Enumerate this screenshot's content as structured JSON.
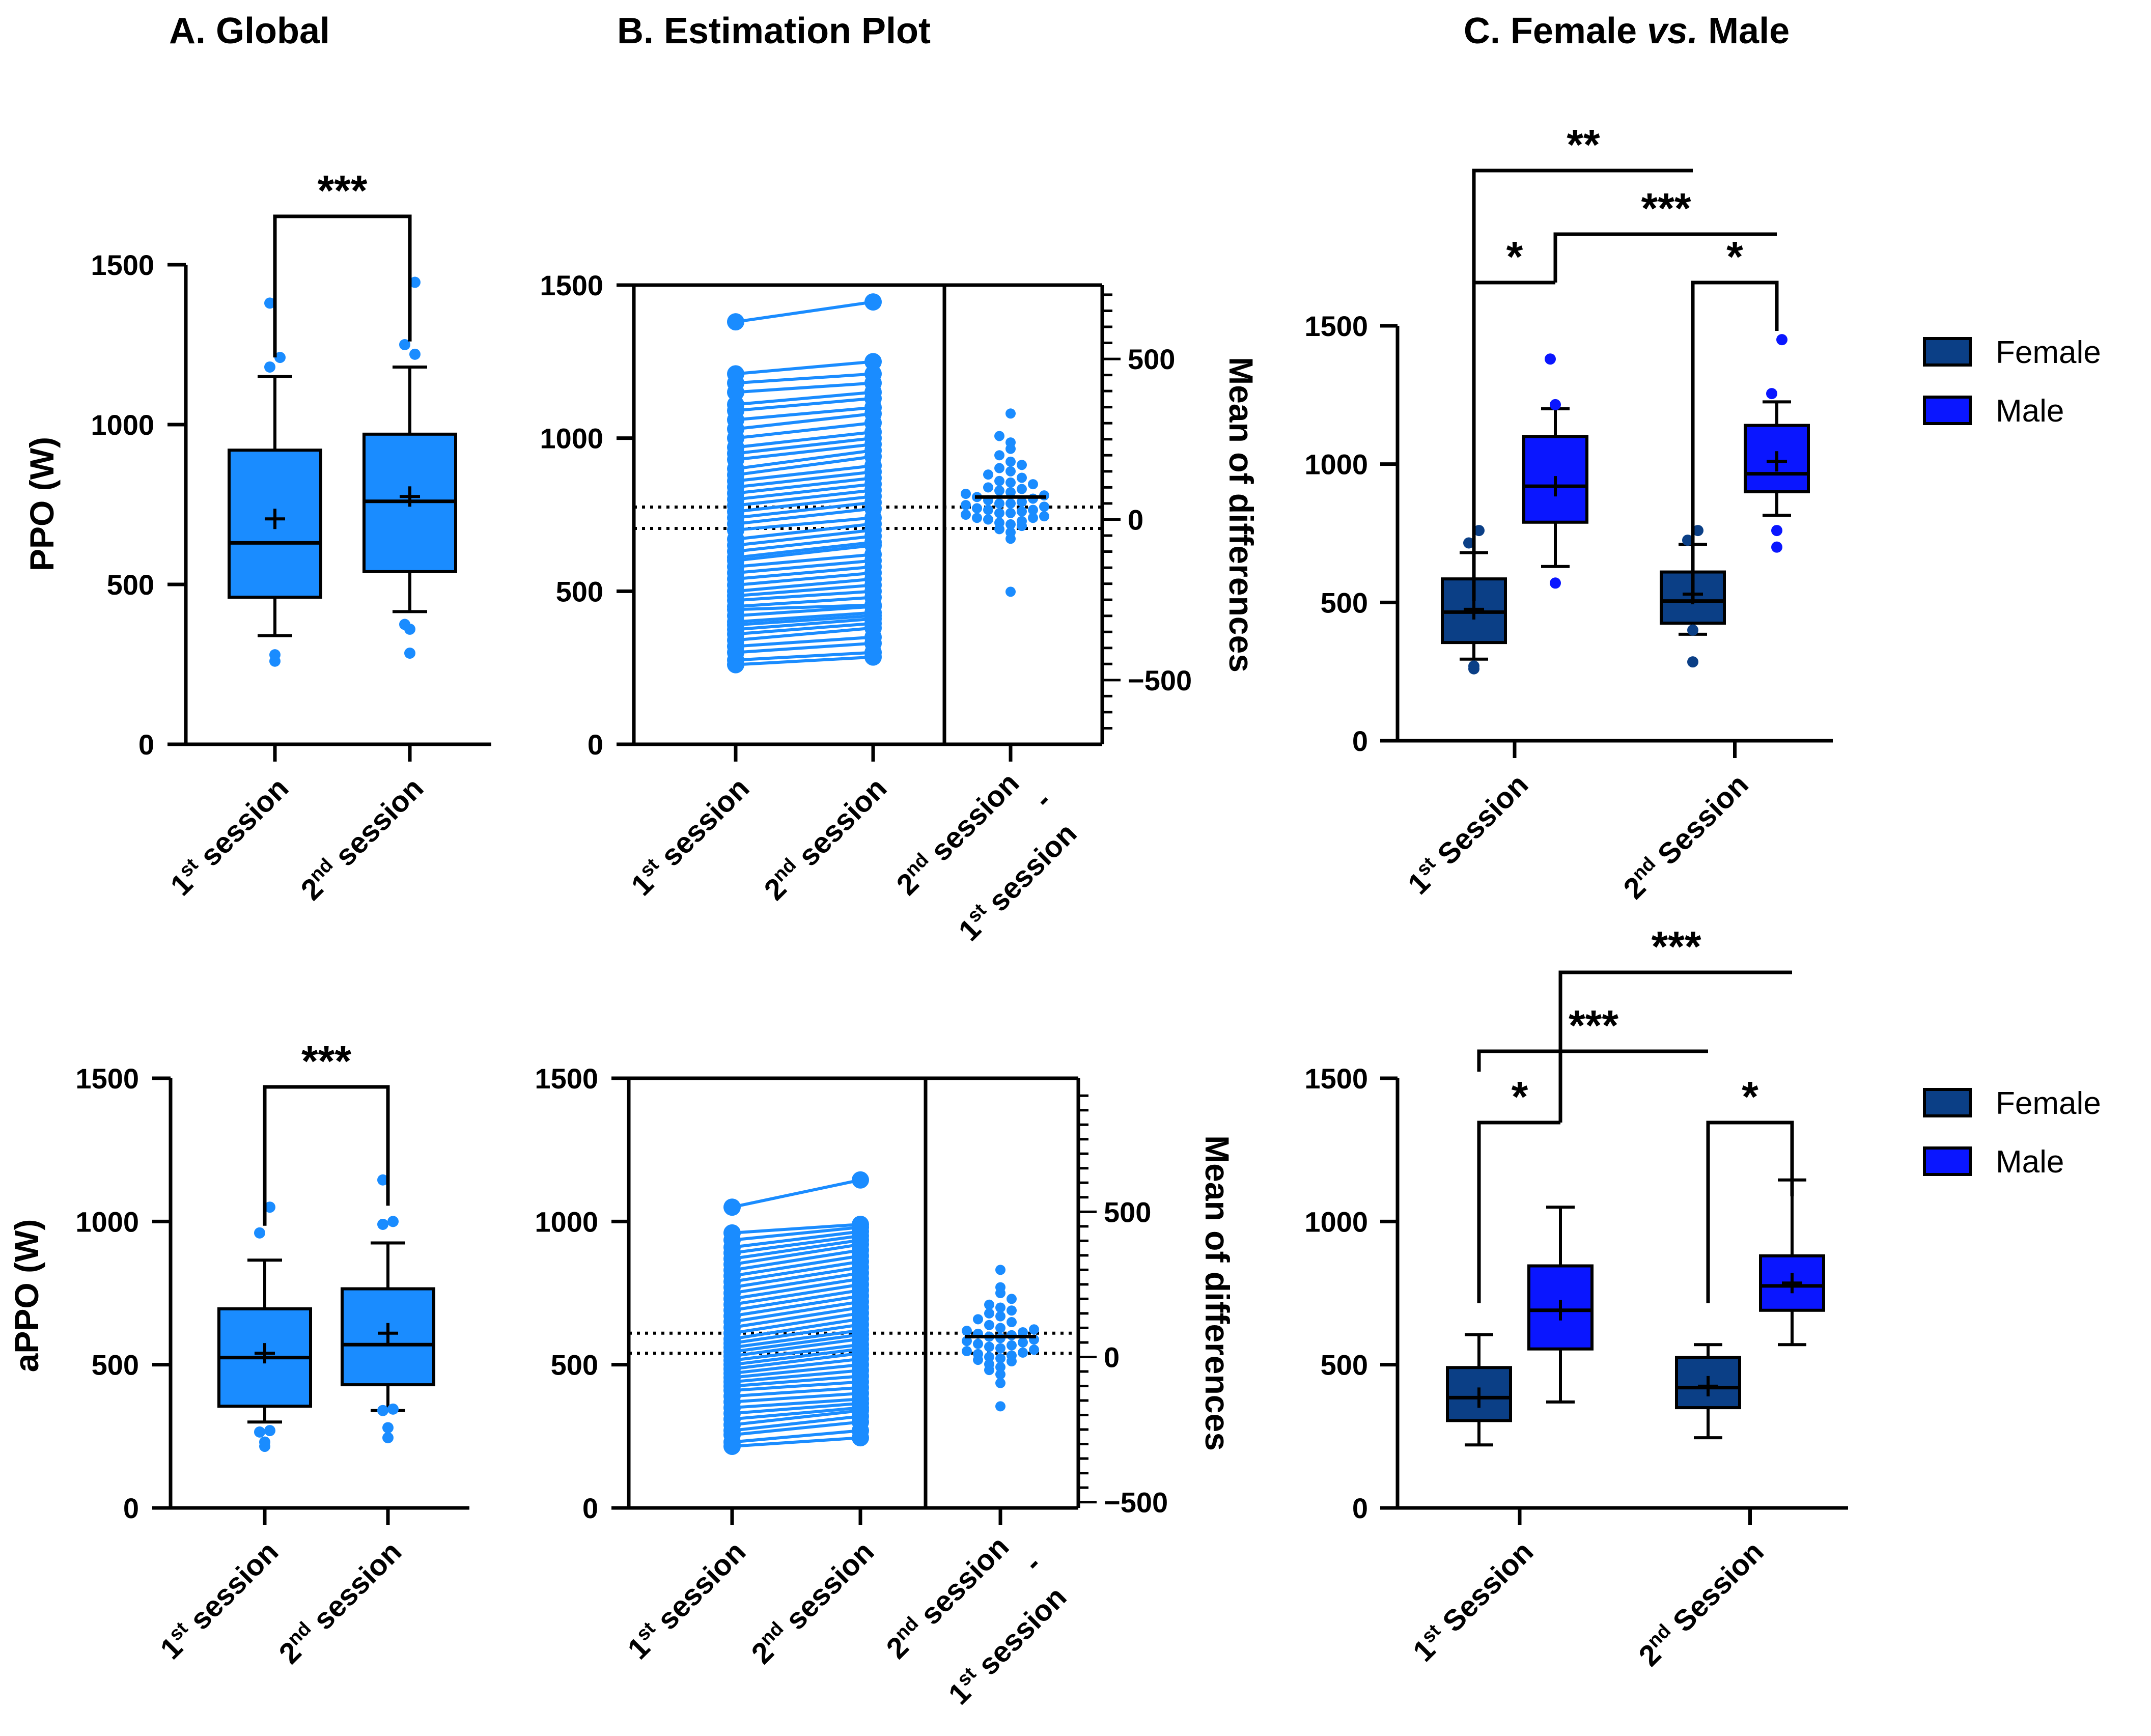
{
  "colors": {
    "global": "#1a8cff",
    "female": "#0b3f86",
    "male": "#0a16ff",
    "ink": "#000000"
  },
  "panels": {
    "A": {
      "title": "A. Global"
    },
    "B": {
      "title": "B. Estimation Plot"
    },
    "C": {
      "title_prefix": "C. Female ",
      "title_vs": "vs.",
      "title_suffix": " Male"
    }
  },
  "labels": {
    "s1_main": "1",
    "s1_sup": "st",
    "s1_word": " session",
    "s2_main": "2",
    "s2_sup": "nd",
    "s2_word": " session",
    "S1_word": " Session",
    "S2_word": " Session",
    "diff_dash": "-",
    "mean_of_differences": "Mean of differences"
  },
  "legend": {
    "female": "Female",
    "male": "Male"
  },
  "chart_data": [
    {
      "id": "A-top",
      "type": "box",
      "ylabel": "PPO (W)",
      "ylim": [
        0,
        1500
      ],
      "yticks": [
        0,
        500,
        1000,
        1500
      ],
      "categories": [
        "1st session",
        "2nd session"
      ],
      "boxes": [
        {
          "whisker_low": 340,
          "q1": 460,
          "median": 630,
          "q3": 920,
          "whisker_high": 1150,
          "mean": 705,
          "outliers": [
            260,
            280,
            1180,
            1210,
            1380
          ]
        },
        {
          "whisker_low": 415,
          "q1": 540,
          "median": 760,
          "q3": 970,
          "whisker_high": 1180,
          "mean": 775,
          "outliers": [
            285,
            360,
            375,
            1220,
            1250,
            1445
          ]
        }
      ],
      "significance": "***"
    },
    {
      "id": "A-bottom",
      "type": "box",
      "ylabel": "aPPO (W)",
      "ylim": [
        0,
        1500
      ],
      "yticks": [
        0,
        500,
        1000,
        1500
      ],
      "categories": [
        "1st session",
        "2nd session"
      ],
      "boxes": [
        {
          "whisker_low": 300,
          "q1": 355,
          "median": 525,
          "q3": 695,
          "whisker_high": 865,
          "mean": 540,
          "outliers": [
            215,
            230,
            265,
            270,
            960,
            1050
          ]
        },
        {
          "whisker_low": 340,
          "q1": 430,
          "median": 570,
          "q3": 765,
          "whisker_high": 925,
          "mean": 610,
          "outliers": [
            245,
            280,
            340,
            345,
            990,
            1000,
            1145
          ]
        }
      ],
      "significance": "***"
    },
    {
      "id": "B-top",
      "type": "estimation",
      "ylim": [
        0,
        1500
      ],
      "yticks": [
        0,
        500,
        1000,
        1500
      ],
      "diff_ylim": [
        -700,
        730
      ],
      "diff_yticks": [
        -500,
        0,
        500
      ],
      "categories": [
        "1st session",
        "2nd session",
        "2nd session - 1st session"
      ],
      "ylabel_right": "Mean of differences",
      "mean_first": 705,
      "mean_second": 775,
      "pairs": [
        [
          260,
          285
        ],
        [
          275,
          300
        ],
        [
          300,
          330
        ],
        [
          320,
          350
        ],
        [
          340,
          380
        ],
        [
          360,
          395
        ],
        [
          375,
          410
        ],
        [
          390,
          420
        ],
        [
          400,
          430
        ],
        [
          420,
          450
        ],
        [
          440,
          455
        ],
        [
          450,
          480
        ],
        [
          470,
          500
        ],
        [
          485,
          520
        ],
        [
          500,
          540
        ],
        [
          520,
          560
        ],
        [
          540,
          580
        ],
        [
          560,
          600
        ],
        [
          580,
          620
        ],
        [
          600,
          650
        ],
        [
          610,
          660
        ],
        [
          630,
          680
        ],
        [
          650,
          700
        ],
        [
          670,
          720
        ],
        [
          700,
          740
        ],
        [
          720,
          770
        ],
        [
          740,
          790
        ],
        [
          760,
          810
        ],
        [
          780,
          830
        ],
        [
          800,
          850
        ],
        [
          820,
          870
        ],
        [
          840,
          890
        ],
        [
          860,
          910
        ],
        [
          880,
          940
        ],
        [
          900,
          960
        ],
        [
          930,
          980
        ],
        [
          950,
          1000
        ],
        [
          970,
          1020
        ],
        [
          1000,
          1050
        ],
        [
          1030,
          1080
        ],
        [
          1060,
          1100
        ],
        [
          1090,
          1130
        ],
        [
          1110,
          1150
        ],
        [
          1150,
          1180
        ],
        [
          1180,
          1210
        ],
        [
          1210,
          1250
        ],
        [
          1380,
          1445
        ]
      ],
      "differences": [
        -225,
        -60,
        -40,
        -30,
        -20,
        -15,
        -10,
        -5,
        0,
        5,
        5,
        10,
        15,
        20,
        20,
        25,
        30,
        30,
        35,
        40,
        45,
        50,
        50,
        55,
        60,
        65,
        70,
        75,
        80,
        85,
        90,
        95,
        100,
        110,
        115,
        120,
        130,
        140,
        150,
        160,
        170,
        180,
        200,
        220,
        240,
        260,
        330
      ]
    },
    {
      "id": "B-bottom",
      "type": "estimation",
      "ylim": [
        0,
        1500
      ],
      "yticks": [
        0,
        500,
        1000,
        1500
      ],
      "diff_ylim": [
        -520,
        960
      ],
      "diff_yticks": [
        -500,
        0,
        500
      ],
      "categories": [
        "1st session",
        "2nd session",
        "2nd session - 1st session"
      ],
      "ylabel_right": "Mean of differences",
      "mean_first": 540,
      "mean_second": 610,
      "pairs": [
        [
          215,
          245
        ],
        [
          230,
          270
        ],
        [
          255,
          300
        ],
        [
          270,
          320
        ],
        [
          290,
          340
        ],
        [
          310,
          350
        ],
        [
          330,
          365
        ],
        [
          350,
          380
        ],
        [
          370,
          400
        ],
        [
          390,
          420
        ],
        [
          410,
          440
        ],
        [
          425,
          460
        ],
        [
          440,
          480
        ],
        [
          455,
          500
        ],
        [
          470,
          520
        ],
        [
          485,
          540
        ],
        [
          500,
          555
        ],
        [
          515,
          570
        ],
        [
          530,
          590
        ],
        [
          545,
          605
        ],
        [
          560,
          620
        ],
        [
          575,
          640
        ],
        [
          590,
          660
        ],
        [
          610,
          680
        ],
        [
          630,
          700
        ],
        [
          650,
          720
        ],
        [
          670,
          740
        ],
        [
          690,
          760
        ],
        [
          710,
          780
        ],
        [
          730,
          800
        ],
        [
          750,
          820
        ],
        [
          770,
          840
        ],
        [
          790,
          860
        ],
        [
          810,
          880
        ],
        [
          830,
          900
        ],
        [
          850,
          920
        ],
        [
          870,
          935
        ],
        [
          890,
          950
        ],
        [
          910,
          965
        ],
        [
          935,
          980
        ],
        [
          960,
          990
        ],
        [
          1050,
          1145
        ]
      ],
      "differences": [
        -170,
        -90,
        -60,
        -45,
        -35,
        -25,
        -15,
        -10,
        -5,
        0,
        5,
        10,
        15,
        20,
        25,
        30,
        35,
        40,
        45,
        50,
        55,
        60,
        65,
        70,
        75,
        80,
        85,
        90,
        95,
        100,
        110,
        120,
        130,
        140,
        150,
        160,
        170,
        180,
        200,
        220,
        240,
        300
      ]
    },
    {
      "id": "C-top",
      "type": "grouped-box",
      "ylim": [
        0,
        1500
      ],
      "yticks": [
        0,
        500,
        1000,
        1500
      ],
      "groups": [
        "1st Session",
        "2nd Session"
      ],
      "series": [
        "Female",
        "Male"
      ],
      "boxes": [
        {
          "group": "1st Session",
          "series": "Female",
          "whisker_low": 295,
          "q1": 355,
          "median": 465,
          "q3": 585,
          "whisker_high": 680,
          "mean": 475,
          "outliers": [
            260,
            270,
            715,
            760
          ]
        },
        {
          "group": "1st Session",
          "series": "Male",
          "whisker_low": 630,
          "q1": 790,
          "median": 920,
          "q3": 1100,
          "whisker_high": 1200,
          "mean": 920,
          "outliers": [
            570,
            1215,
            1380
          ]
        },
        {
          "group": "2nd Session",
          "series": "Female",
          "whisker_low": 385,
          "q1": 425,
          "median": 505,
          "q3": 610,
          "whisker_high": 710,
          "mean": 530,
          "outliers": [
            285,
            400,
            725,
            760
          ]
        },
        {
          "group": "2nd Session",
          "series": "Male",
          "whisker_low": 815,
          "q1": 900,
          "median": 965,
          "q3": 1140,
          "whisker_high": 1225,
          "mean": 1010,
          "outliers": [
            700,
            760,
            1255,
            1450
          ]
        }
      ],
      "significance": [
        {
          "label": "*",
          "between": [
            "1st Session Female",
            "1st Session Male"
          ]
        },
        {
          "label": "*",
          "between": [
            "2nd Session Female",
            "2nd Session Male"
          ]
        },
        {
          "label": "**",
          "between": [
            "1st Session Female",
            "2nd Session Female"
          ]
        },
        {
          "label": "***",
          "between": [
            "1st Session Male",
            "2nd Session Male"
          ]
        }
      ]
    },
    {
      "id": "C-bottom",
      "type": "grouped-box",
      "ylim": [
        0,
        1500
      ],
      "yticks": [
        0,
        500,
        1000,
        1500
      ],
      "groups": [
        "1st Session",
        "2nd Session"
      ],
      "series": [
        "Female",
        "Male"
      ],
      "boxes": [
        {
          "group": "1st Session",
          "series": "Female",
          "whisker_low": 220,
          "q1": 305,
          "median": 385,
          "q3": 490,
          "whisker_high": 605,
          "mean": 385,
          "outliers": []
        },
        {
          "group": "1st Session",
          "series": "Male",
          "whisker_low": 370,
          "q1": 555,
          "median": 690,
          "q3": 845,
          "whisker_high": 1050,
          "mean": 690,
          "outliers": []
        },
        {
          "group": "2nd Session",
          "series": "Female",
          "whisker_low": 245,
          "q1": 350,
          "median": 420,
          "q3": 525,
          "whisker_high": 570,
          "mean": 425,
          "outliers": []
        },
        {
          "group": "2nd Session",
          "series": "Male",
          "whisker_low": 570,
          "q1": 690,
          "median": 775,
          "q3": 880,
          "whisker_high": 1145,
          "mean": 785,
          "outliers": []
        }
      ],
      "significance": [
        {
          "label": "*",
          "between": [
            "1st Session Female",
            "1st Session Male"
          ]
        },
        {
          "label": "*",
          "between": [
            "2nd Session Female",
            "2nd Session Male"
          ]
        },
        {
          "label": "***",
          "between": [
            "1st Session Female",
            "2nd Session Female"
          ]
        },
        {
          "label": "***",
          "between": [
            "1st Session Male",
            "2nd Session Male"
          ]
        }
      ]
    }
  ]
}
